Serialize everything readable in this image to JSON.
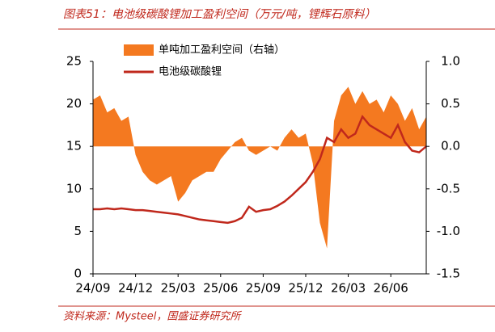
{
  "chart_data": {
    "type": "line-area",
    "title": "图表51：电池级碳酸锂加工盈利空间（万元/吨，锂辉石原料）",
    "source": "资料来源：Mysteel，国盛证券研究所",
    "categories": [
      "24/09",
      null,
      null,
      null,
      null,
      null,
      "24/12",
      null,
      null,
      null,
      null,
      null,
      "25/03",
      null,
      null,
      null,
      null,
      null,
      "25/06",
      null,
      null,
      null,
      null,
      null,
      "25/09",
      null,
      null,
      null,
      null,
      null,
      "25/12",
      null,
      null,
      null,
      null,
      null,
      "26/03",
      null,
      null,
      null,
      null,
      null,
      "26/06",
      null,
      null,
      null,
      null,
      null
    ],
    "ylim": [
      0,
      25
    ],
    "yticks": [
      0,
      5,
      10,
      15,
      20,
      25
    ],
    "y2lim": [
      -1.5,
      1.0
    ],
    "y2ticks": [
      {
        "value": -1.5,
        "label": "-1.5"
      },
      {
        "value": -1,
        "label": "-1.0"
      },
      -0.5,
      {
        "value": 0,
        "label": "0.0"
      },
      0.5,
      {
        "value": 1,
        "label": "1.0"
      }
    ],
    "series": [
      {
        "name": "单吨加工盈利空间（右轴）",
        "kind": "area",
        "axis": "y2",
        "color": "#f47920",
        "values": [
          0.55,
          0.6,
          0.4,
          0.45,
          0.3,
          0.35,
          -0.1,
          -0.3,
          -0.4,
          -0.45,
          -0.4,
          -0.35,
          -0.65,
          -0.55,
          -0.4,
          -0.35,
          -0.3,
          -0.3,
          -0.15,
          -0.05,
          0.05,
          0.1,
          -0.05,
          -0.1,
          -0.05,
          0.0,
          -0.05,
          0.1,
          0.2,
          0.1,
          0.15,
          -0.2,
          -0.9,
          -1.2,
          0.3,
          0.6,
          0.7,
          0.5,
          0.65,
          0.5,
          0.55,
          0.4,
          0.6,
          0.5,
          0.3,
          0.45,
          0.2,
          0.35
        ]
      },
      {
        "name": "电池级碳酸锂",
        "kind": "line",
        "color": "#c0281c",
        "values": [
          7.6,
          7.6,
          7.7,
          7.6,
          7.7,
          7.6,
          7.5,
          7.5,
          7.4,
          7.3,
          7.2,
          7.1,
          7.0,
          6.8,
          6.6,
          6.4,
          6.3,
          6.2,
          6.1,
          6.0,
          6.2,
          6.6,
          7.9,
          7.3,
          7.5,
          7.6,
          8.0,
          8.5,
          9.2,
          10.0,
          10.8,
          12.0,
          13.5,
          16.0,
          15.5,
          17.0,
          16.0,
          16.5,
          18.5,
          17.5,
          17.0,
          16.5,
          16.0,
          17.5,
          15.5,
          14.5,
          14.3,
          15.0
        ]
      }
    ]
  }
}
